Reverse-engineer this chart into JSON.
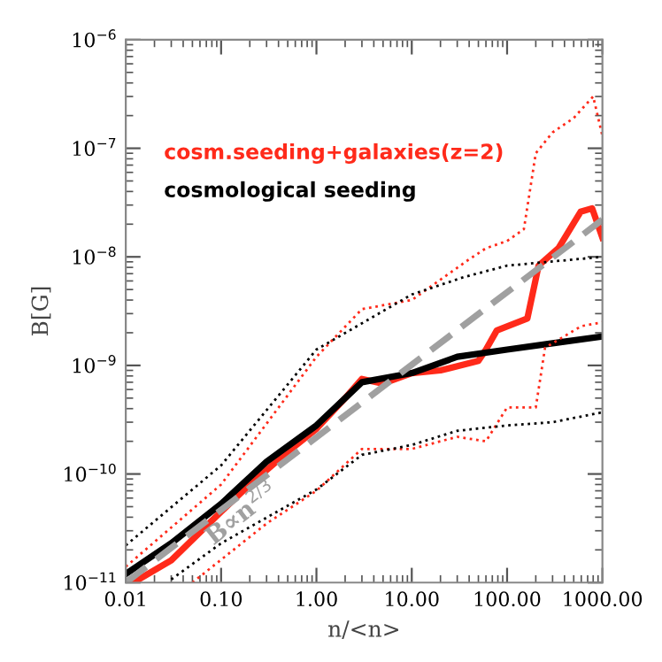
{
  "chart_data": {
    "type": "line",
    "xlabel": "n/<n>",
    "ylabel": "B[G]",
    "log": "xy",
    "legend": false,
    "grid": false,
    "xlim": [
      0.01,
      1000
    ],
    "ylim": [
      1e-11,
      1e-06
    ],
    "xticks": [
      {
        "value": 0.01,
        "label": "0.01"
      },
      {
        "value": 0.1,
        "label": "0.10"
      },
      {
        "value": 1,
        "label": "1.00"
      },
      {
        "value": 10,
        "label": "10.00"
      },
      {
        "value": 100,
        "label": "100.00"
      },
      {
        "value": 1000,
        "label": "1000.00"
      }
    ],
    "yticks": [
      {
        "value": 1e-11,
        "label": "10$^{−11}$"
      },
      {
        "value": 1e-10,
        "label": "10$^{−10}$"
      },
      {
        "value": 1e-09,
        "label": "10$^{−9}$"
      },
      {
        "value": 1e-08,
        "label": "10$^{−8}$"
      },
      {
        "value": 1e-07,
        "label": "10$^{−7}$"
      },
      {
        "value": 1e-06,
        "label": "10$^{−6}$"
      }
    ],
    "annotations": [
      "B∝n$^{2/3}$"
    ],
    "series": [
      {
        "name": "cosm.seeding+galaxies(z=2)",
        "color": "#ff2a1a",
        "line_style": "solid",
        "x": [
          0.012,
          0.03,
          0.1,
          0.2,
          0.5,
          1,
          2,
          3,
          5,
          10,
          20,
          50,
          60,
          78,
          163,
          214,
          345,
          590,
          780,
          1000
        ],
        "values": [
          1e-11,
          1.6e-11,
          4.5e-11,
          8e-11,
          1.6e-10,
          2.6e-10,
          5e-10,
          7.5e-10,
          6.8e-10,
          8.5e-10,
          9e-10,
          1.1e-09,
          1.4e-09,
          2.1e-09,
          2.7e-09,
          8.3e-09,
          1.2e-08,
          2.6e-08,
          2.8e-08,
          1.5e-08
        ]
      },
      {
        "name": "cosmological seeding",
        "color": "#000000",
        "line_style": "solid",
        "x": [
          0.01,
          0.03,
          0.1,
          0.3,
          1,
          3,
          10,
          30,
          100,
          300,
          1000
        ],
        "values": [
          1.2e-11,
          2.3e-11,
          5.3e-11,
          1.3e-10,
          2.8e-10,
          7e-10,
          8.5e-10,
          1.2e-09,
          1.4e-09,
          1.6e-09,
          1.85e-09
        ]
      },
      {
        "color": "#ff2a1a",
        "line_style": "dotted",
        "x": [
          0.01,
          0.1,
          1,
          3,
          10,
          40,
          60,
          100,
          150,
          200,
          300,
          500,
          800,
          1000
        ],
        "values": [
          1.4e-11,
          8e-11,
          1.2e-09,
          3.3e-09,
          4e-09,
          9.5e-09,
          1.2e-08,
          1.4e-08,
          1.8e-08,
          9e-08,
          1.4e-07,
          1.9e-07,
          3e-07,
          1.3e-07
        ]
      },
      {
        "color": "#000000",
        "line_style": "dotted",
        "x": [
          0.01,
          0.1,
          1,
          10,
          35,
          100,
          1000
        ],
        "values": [
          2.2e-11,
          1.2e-10,
          1.4e-09,
          4.5e-09,
          6.5e-09,
          8.3e-09,
          1e-08
        ]
      },
      {
        "color": "#ff2a1a",
        "line_style": "dotted",
        "x": [
          0.05,
          0.3,
          1,
          3,
          10,
          30,
          60,
          100,
          200,
          250,
          300,
          600,
          1000
        ],
        "values": [
          1e-11,
          3.5e-11,
          7e-11,
          1.7e-10,
          1.7e-10,
          2.2e-10,
          2e-10,
          4.1e-10,
          4.1e-10,
          1.45e-09,
          1.6e-09,
          2.3e-09,
          2.5e-09
        ]
      },
      {
        "color": "#000000",
        "line_style": "dotted",
        "x": [
          0.03,
          0.1,
          1,
          3,
          10,
          30,
          100,
          300,
          1000
        ],
        "values": [
          1.07e-11,
          2.3e-11,
          7.2e-11,
          1.5e-10,
          1.85e-10,
          2.5e-10,
          2.8e-10,
          3e-10,
          3.7e-10
        ]
      },
      {
        "color": "#a0a0a0",
        "line_style": "dashed",
        "x": [
          0.01,
          1000
        ],
        "values": [
          1e-11,
          2.2e-08
        ]
      }
    ]
  }
}
